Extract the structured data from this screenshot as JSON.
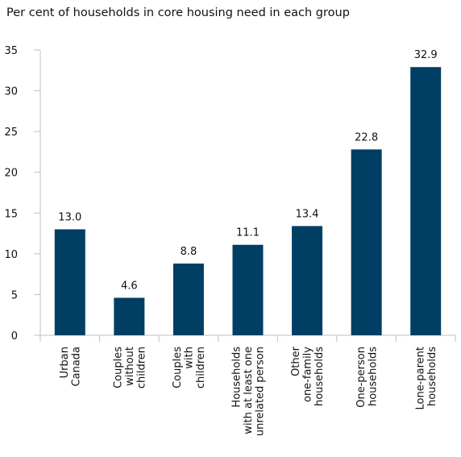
{
  "chart_data": {
    "type": "bar",
    "title": "Per cent of households in core housing need in each group",
    "categories": [
      [
        "Urban",
        "Canada"
      ],
      [
        "Couples",
        "without",
        "children"
      ],
      [
        "Couples",
        "with",
        "children"
      ],
      [
        "Households",
        "with at least one",
        "unrelated person"
      ],
      [
        "Other",
        "one-family",
        "households"
      ],
      [
        "One-person",
        "households"
      ],
      [
        "Lone-parent",
        "households"
      ]
    ],
    "values": [
      13.0,
      4.6,
      8.8,
      11.1,
      13.4,
      22.8,
      32.9
    ],
    "value_labels": [
      "13.0",
      "4.6",
      "8.8",
      "11.1",
      "13.4",
      "22.8",
      "32.9"
    ],
    "ylim": [
      0,
      35
    ],
    "yticks": [
      0,
      5,
      10,
      15,
      20,
      25,
      30,
      35
    ],
    "grid": false,
    "bar_color": "#003f63"
  }
}
